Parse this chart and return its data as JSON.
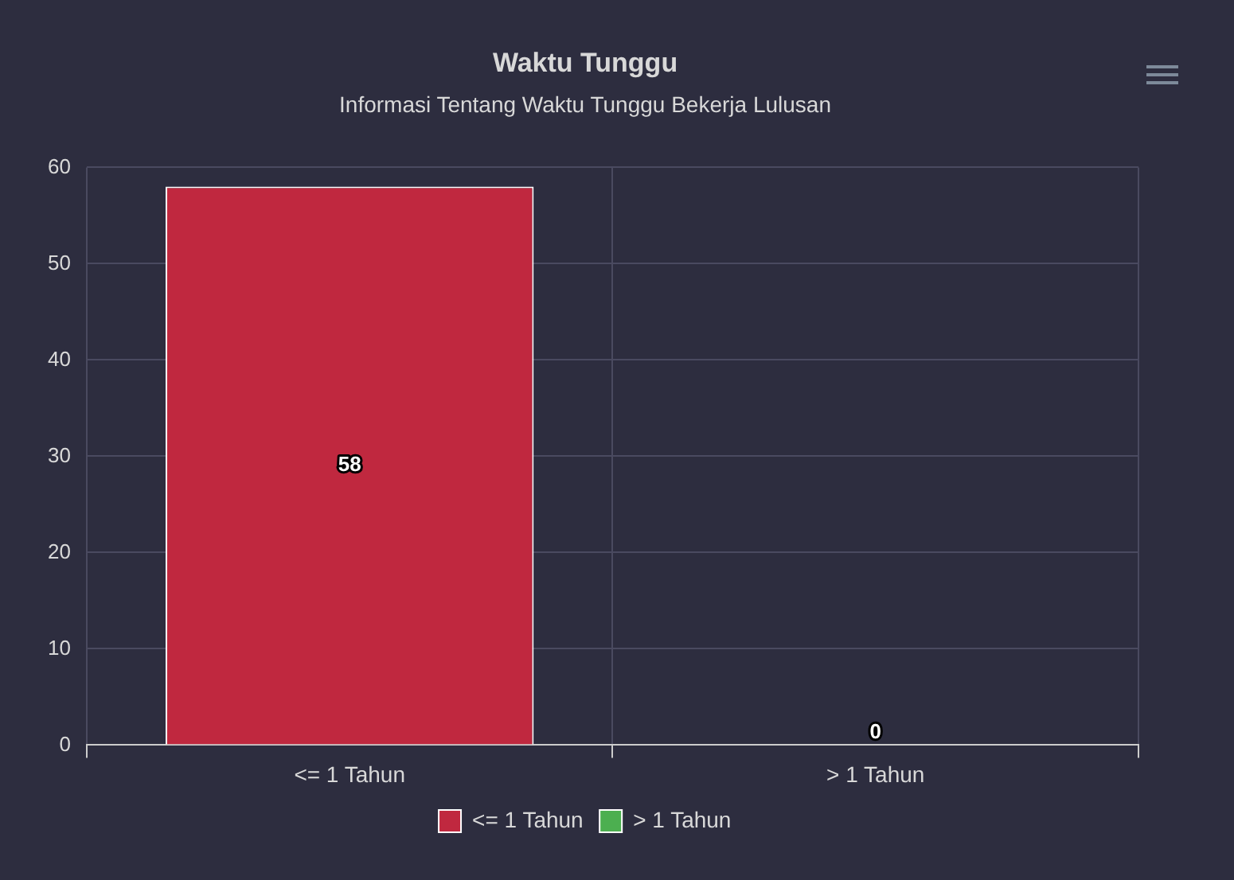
{
  "chart_data": {
    "type": "bar",
    "title": "Waktu Tunggu",
    "subtitle": "Informasi Tentang Waktu Tunggu Bekerja Lulusan",
    "categories": [
      "<= 1 Tahun",
      "> 1 Tahun"
    ],
    "series": [
      {
        "name": "<= 1 Tahun",
        "color": "#c0283f",
        "values": [
          58,
          null
        ]
      },
      {
        "name": "> 1 Tahun",
        "color": "#4caf50",
        "values": [
          null,
          0
        ]
      }
    ],
    "ylim": [
      0,
      60
    ],
    "yticks": [
      0,
      10,
      20,
      30,
      40,
      50,
      60
    ],
    "grid": true,
    "legend": "bottom",
    "data_labels": true
  }
}
